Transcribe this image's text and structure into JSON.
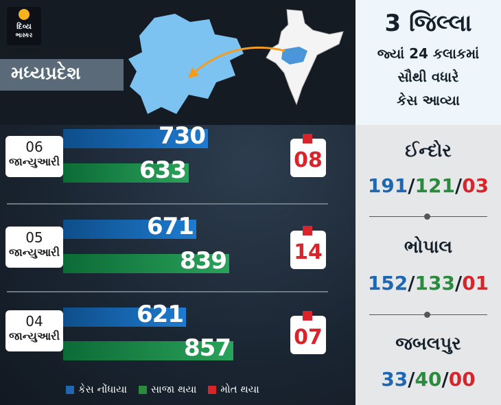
{
  "brand": {
    "line1": "દિવ્ય",
    "line2": "ભાસ્કર"
  },
  "state": "મધ્યપ્રદેશ",
  "headline": {
    "line1": "3 જિલ્લા",
    "line2": "જ્યાં 24 કલાકમાં",
    "line3": "સૌથી વધારે",
    "line4": "કેસ આવ્યા"
  },
  "legend": {
    "cases": "કેસ નોંધાયા",
    "cured": "સાજા થયા",
    "deaths": "મોત થયા"
  },
  "colors": {
    "cases": "#1f67b1",
    "cured": "#2a8a3e",
    "deaths": "#d7262b"
  },
  "chart_data": {
    "type": "bar",
    "categories": [
      "06 જાન્યુઆરી",
      "05 જાન્યુઆરી",
      "04 જાન્યુઆરી"
    ],
    "series": [
      {
        "name": "કેસ નોંધાયા",
        "values": [
          730,
          671,
          621
        ]
      },
      {
        "name": "સાજા થયા",
        "values": [
          633,
          839,
          857
        ]
      },
      {
        "name": "મોત થયા",
        "values": [
          "08",
          "14",
          "07"
        ]
      }
    ]
  },
  "rows": [
    {
      "day": "06",
      "month": "જાન્યુઆરી",
      "cases": 730,
      "cured": 633,
      "deaths": "08"
    },
    {
      "day": "05",
      "month": "જાન્યુઆરી",
      "cases": 671,
      "cured": 839,
      "deaths": "14"
    },
    {
      "day": "04",
      "month": "જાન્યુઆરી",
      "cases": 621,
      "cured": 857,
      "deaths": "07"
    }
  ],
  "districts": [
    {
      "name": "ઈન્દોર",
      "cases": "191",
      "cured": "121",
      "deaths": "03"
    },
    {
      "name": "ભોપાલ",
      "cases": "152",
      "cured": "133",
      "deaths": "01"
    },
    {
      "name": "જબલપુર",
      "cases": "33",
      "cured": "40",
      "deaths": "00"
    }
  ]
}
